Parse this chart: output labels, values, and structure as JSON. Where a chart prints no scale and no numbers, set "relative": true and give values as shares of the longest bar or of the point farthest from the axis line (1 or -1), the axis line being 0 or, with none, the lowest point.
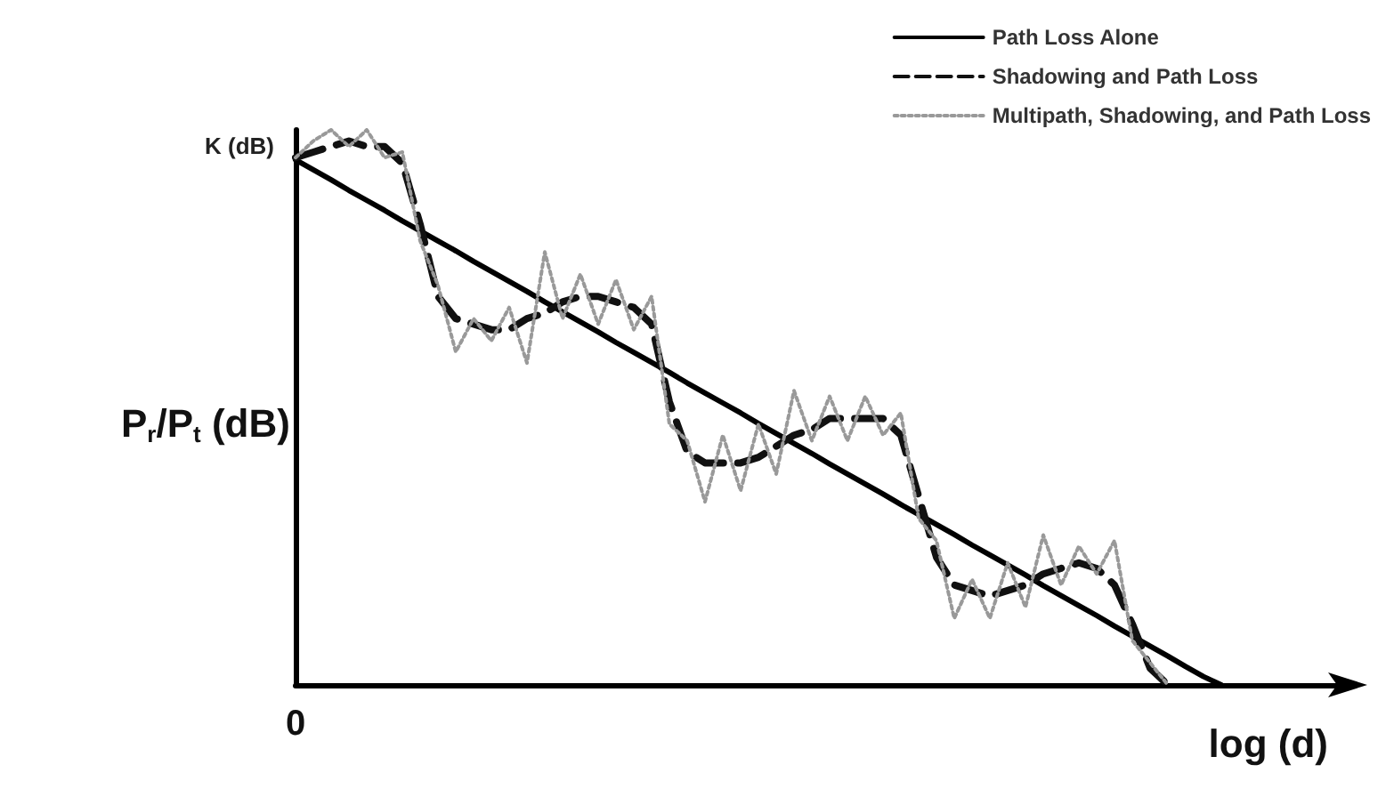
{
  "chart_data": {
    "type": "line",
    "relative": true,
    "xlabel": "log (d)",
    "ylabel": "P$_{r}$/P$_{t}$ (dB)",
    "legend": "top right",
    "marker": "none",
    "grid": false,
    "annotations": [
      "K (dB)",
      "0"
    ],
    "categories": [
      null,
      null,
      null,
      null,
      null,
      null,
      null,
      null,
      null,
      null,
      null,
      null,
      null,
      null,
      null,
      null,
      null,
      null,
      null,
      null,
      null,
      null,
      null,
      null,
      null,
      null,
      null,
      null,
      null,
      null,
      null,
      null,
      null,
      null,
      null,
      null,
      null,
      null,
      null,
      null,
      null,
      null,
      null,
      null,
      null,
      null,
      null,
      null,
      null,
      null,
      null,
      null,
      null,
      null,
      null,
      null,
      null,
      null,
      null,
      null
    ],
    "series": [
      {
        "name": "Path Loss Alone",
        "color": "#000000",
        "line_style": "solid",
        "values": [
          0.946,
          0.928,
          0.91,
          0.891,
          0.873,
          0.855,
          0.836,
          0.818,
          0.8,
          0.782,
          0.763,
          0.745,
          0.727,
          0.709,
          0.69,
          0.672,
          0.654,
          0.636,
          0.617,
          0.599,
          0.581,
          0.563,
          0.544,
          0.526,
          0.508,
          0.49,
          0.471,
          0.453,
          0.435,
          0.417,
          0.398,
          0.38,
          0.362,
          0.344,
          0.325,
          0.307,
          0.289,
          0.271,
          0.252,
          0.234,
          0.216,
          0.198,
          0.179,
          0.161,
          0.143,
          0.125,
          0.106,
          0.088,
          0.07,
          0.052,
          0.033,
          0.015,
          0,
          null,
          null,
          null,
          null,
          null,
          null,
          null
        ]
      },
      {
        "name": "Shadowing and Path Loss",
        "color": "#111111",
        "line_style": "dashed",
        "values": [
          0.95,
          0.96,
          0.97,
          0.98,
          0.97,
          0.97,
          0.94,
          0.83,
          0.7,
          0.66,
          0.65,
          0.64,
          0.64,
          0.66,
          0.67,
          0.69,
          0.7,
          0.7,
          0.69,
          0.68,
          0.65,
          0.51,
          0.42,
          0.4,
          0.4,
          0.4,
          0.41,
          0.43,
          0.45,
          0.46,
          0.48,
          0.48,
          0.48,
          0.48,
          0.45,
          0.34,
          0.23,
          0.18,
          0.17,
          0.16,
          0.17,
          0.18,
          0.2,
          0.21,
          0.22,
          0.21,
          0.18,
          0.11,
          0.03,
          0,
          null,
          null,
          null,
          null,
          null,
          null,
          null,
          null,
          null,
          null
        ]
      },
      {
        "name": "Multipath, Shadowing, and Path Loss",
        "color": "#999999",
        "line_style": "dotted",
        "values": [
          0.95,
          0.98,
          1.0,
          0.97,
          1.0,
          0.95,
          0.96,
          0.8,
          0.72,
          0.6,
          0.66,
          0.62,
          0.68,
          0.58,
          0.78,
          0.66,
          0.74,
          0.65,
          0.73,
          0.64,
          0.7,
          0.47,
          0.44,
          0.33,
          0.45,
          0.35,
          0.47,
          0.38,
          0.53,
          0.44,
          0.52,
          0.44,
          0.52,
          0.45,
          0.49,
          0.3,
          0.26,
          0.12,
          0.19,
          0.12,
          0.22,
          0.14,
          0.27,
          0.18,
          0.25,
          0.2,
          0.26,
          0.08,
          0.04,
          0,
          null,
          null,
          null,
          null,
          null,
          null,
          null,
          null,
          null,
          null
        ]
      }
    ]
  }
}
